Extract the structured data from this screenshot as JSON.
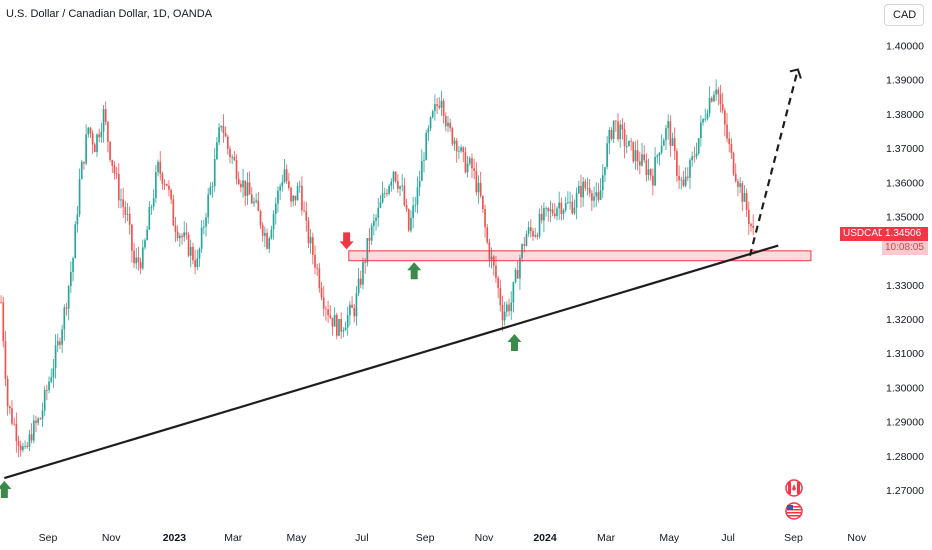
{
  "header": {
    "title": "U.S. Dollar / Canadian Dollar, 1D, OANDA",
    "currency_button": "CAD"
  },
  "price_tag": {
    "symbol": "USDCAD",
    "price": "1.34506",
    "countdown": "10:08:05",
    "color": "#f23645"
  },
  "colors": {
    "up": "#26a69a",
    "down": "#ef5350",
    "support_zone_fill": "rgba(242,54,69,0.18)",
    "support_zone_border": "#f23645",
    "arrow_up": "#3a8a4a",
    "arrow_down": "#f23645"
  },
  "icons": [
    "canada-flag-icon",
    "us-flag-icon"
  ],
  "chart_data": {
    "type": "candlestick",
    "symbol": "USDCAD",
    "timeframe": "1D",
    "source": "OANDA",
    "ylim": [
      1.265,
      1.404
    ],
    "yticks": [
      "1.40000",
      "1.39000",
      "1.38000",
      "1.37000",
      "1.36000",
      "1.35000",
      "1.34000",
      "1.33000",
      "1.32000",
      "1.31000",
      "1.30000",
      "1.29000",
      "1.28000",
      "1.27000"
    ],
    "xticks": [
      {
        "label": "Sep",
        "bold": false
      },
      {
        "label": "Nov",
        "bold": false
      },
      {
        "label": "2023",
        "bold": true
      },
      {
        "label": "Mar",
        "bold": false
      },
      {
        "label": "May",
        "bold": false
      },
      {
        "label": "Jul",
        "bold": false
      },
      {
        "label": "Sep",
        "bold": false
      },
      {
        "label": "Nov",
        "bold": false
      },
      {
        "label": "2024",
        "bold": true
      },
      {
        "label": "Mar",
        "bold": false
      },
      {
        "label": "May",
        "bold": false
      },
      {
        "label": "Jul",
        "bold": false
      },
      {
        "label": "Sep",
        "bold": false
      },
      {
        "label": "Nov",
        "bold": false
      }
    ],
    "price_path": [
      [
        0,
        1.325
      ],
      [
        3,
        1.295
      ],
      [
        7,
        1.287
      ],
      [
        11,
        1.28
      ],
      [
        14,
        1.287
      ],
      [
        18,
        1.291
      ],
      [
        22,
        1.302
      ],
      [
        26,
        1.312
      ],
      [
        29,
        1.322
      ],
      [
        33,
        1.338
      ],
      [
        36,
        1.36
      ],
      [
        40,
        1.376
      ],
      [
        43,
        1.371
      ],
      [
        47,
        1.38
      ],
      [
        50,
        1.369
      ],
      [
        54,
        1.357
      ],
      [
        58,
        1.349
      ],
      [
        61,
        1.336
      ],
      [
        65,
        1.338
      ],
      [
        68,
        1.35
      ],
      [
        72,
        1.364
      ],
      [
        76,
        1.36
      ],
      [
        79,
        1.349
      ],
      [
        83,
        1.344
      ],
      [
        86,
        1.341
      ],
      [
        90,
        1.336
      ],
      [
        94,
        1.352
      ],
      [
        97,
        1.361
      ],
      [
        101,
        1.378
      ],
      [
        104,
        1.37
      ],
      [
        108,
        1.364
      ],
      [
        112,
        1.358
      ],
      [
        115,
        1.355
      ],
      [
        119,
        1.349
      ],
      [
        122,
        1.343
      ],
      [
        126,
        1.354
      ],
      [
        130,
        1.364
      ],
      [
        133,
        1.353
      ],
      [
        137,
        1.359
      ],
      [
        140,
        1.346
      ],
      [
        144,
        1.337
      ],
      [
        148,
        1.326
      ],
      [
        151,
        1.321
      ],
      [
        155,
        1.317
      ],
      [
        158,
        1.32
      ],
      [
        162,
        1.323
      ],
      [
        166,
        1.335
      ],
      [
        169,
        1.344
      ],
      [
        173,
        1.351
      ],
      [
        176,
        1.357
      ],
      [
        180,
        1.364
      ],
      [
        184,
        1.357
      ],
      [
        187,
        1.346
      ],
      [
        191,
        1.357
      ],
      [
        194,
        1.369
      ],
      [
        198,
        1.379
      ],
      [
        202,
        1.386
      ],
      [
        205,
        1.375
      ],
      [
        209,
        1.372
      ],
      [
        212,
        1.366
      ],
      [
        216,
        1.364
      ],
      [
        220,
        1.355
      ],
      [
        223,
        1.342
      ],
      [
        227,
        1.332
      ],
      [
        230,
        1.322
      ],
      [
        234,
        1.325
      ],
      [
        238,
        1.338
      ],
      [
        241,
        1.345
      ],
      [
        245,
        1.346
      ],
      [
        248,
        1.349
      ],
      [
        252,
        1.351
      ],
      [
        256,
        1.354
      ],
      [
        259,
        1.353
      ],
      [
        263,
        1.354
      ],
      [
        266,
        1.358
      ],
      [
        270,
        1.359
      ],
      [
        274,
        1.353
      ],
      [
        277,
        1.367
      ],
      [
        281,
        1.378
      ],
      [
        284,
        1.374
      ],
      [
        288,
        1.37
      ],
      [
        292,
        1.367
      ],
      [
        295,
        1.365
      ],
      [
        299,
        1.362
      ],
      [
        302,
        1.371
      ],
      [
        306,
        1.376
      ],
      [
        310,
        1.364
      ],
      [
        313,
        1.358
      ],
      [
        317,
        1.366
      ],
      [
        320,
        1.373
      ],
      [
        324,
        1.383
      ],
      [
        328,
        1.389
      ],
      [
        331,
        1.379
      ],
      [
        335,
        1.367
      ],
      [
        338,
        1.361
      ],
      [
        342,
        1.352
      ],
      [
        345,
        1.345
      ]
    ],
    "annotations": {
      "support_zone": {
        "low": 1.3375,
        "high": 1.3395
      },
      "trendline": {
        "from": {
          "bar": 2,
          "price": 1.2735
        },
        "to": {
          "bar": 357,
          "price": 1.3415
        }
      },
      "projection": {
        "from": {
          "bar": 344,
          "price": 1.3385
        },
        "to": {
          "bar": 366,
          "price": 1.393
        },
        "style": "dashed"
      },
      "markers": [
        {
          "type": "arrow-up",
          "bar": 2,
          "price": 1.2735
        },
        {
          "type": "arrow-down",
          "bar": 159,
          "price": 1.3395
        },
        {
          "type": "arrow-up",
          "bar": 190,
          "price": 1.3375
        },
        {
          "type": "arrow-up",
          "bar": 236,
          "price": 1.3165
        }
      ]
    }
  }
}
